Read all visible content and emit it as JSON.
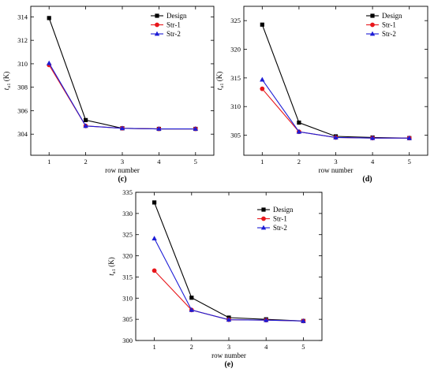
{
  "colors": {
    "Design": "#000000",
    "Str-1": "#e8161b",
    "Str-2": "#1d1dd6",
    "axis": "#000000",
    "background": "#ffffff"
  },
  "markers": {
    "Design": "square",
    "Str-1": "circle",
    "Str-2": "triangle"
  },
  "chart_data": [
    {
      "id": "c",
      "panel_label": "(c)",
      "type": "line",
      "xlabel": "row number",
      "ylabel": "t",
      "ylabel_subscript": "a1",
      "ylabel_unit": "(K)",
      "x": [
        1,
        2,
        3,
        4,
        5
      ],
      "xlim": [
        0.5,
        5.5
      ],
      "ylim": [
        302.2,
        314.9
      ],
      "yticks": [
        304,
        306,
        308,
        310,
        312,
        314
      ],
      "grid": false,
      "legend_position": "top-right",
      "series": [
        {
          "name": "Design",
          "values": [
            313.9,
            305.2,
            304.5,
            304.45,
            304.45
          ]
        },
        {
          "name": "Str-1",
          "values": [
            309.9,
            304.7,
            304.5,
            304.45,
            304.45
          ]
        },
        {
          "name": "Str-2",
          "values": [
            310.05,
            304.7,
            304.5,
            304.45,
            304.45
          ]
        }
      ]
    },
    {
      "id": "d",
      "panel_label": "(d)",
      "type": "line",
      "xlabel": "row number",
      "ylabel": "t",
      "ylabel_subscript": "a1",
      "ylabel_unit": "(K)",
      "x": [
        1,
        2,
        3,
        4,
        5
      ],
      "xlim": [
        0.5,
        5.5
      ],
      "ylim": [
        301.5,
        327.5
      ],
      "yticks": [
        305,
        310,
        315,
        320,
        325
      ],
      "grid": false,
      "legend_position": "top-right",
      "series": [
        {
          "name": "Design",
          "values": [
            324.3,
            307.2,
            304.8,
            304.6,
            304.5
          ]
        },
        {
          "name": "Str-1",
          "values": [
            313.1,
            305.6,
            304.6,
            304.5,
            304.5
          ]
        },
        {
          "name": "Str-2",
          "values": [
            314.7,
            305.6,
            304.6,
            304.5,
            304.5
          ]
        }
      ]
    },
    {
      "id": "e",
      "panel_label": "(e)",
      "type": "line",
      "xlabel": "row number",
      "ylabel": "t",
      "ylabel_subscript": "a1",
      "ylabel_unit": "(K)",
      "x": [
        1,
        2,
        3,
        4,
        5
      ],
      "xlim": [
        0.5,
        5.5
      ],
      "ylim": [
        300,
        335
      ],
      "yticks": [
        300,
        305,
        310,
        315,
        320,
        325,
        330,
        335
      ],
      "grid": false,
      "legend_position": "top-right",
      "series": [
        {
          "name": "Design",
          "values": [
            332.6,
            310.1,
            305.4,
            305.0,
            304.6
          ]
        },
        {
          "name": "Str-1",
          "values": [
            316.5,
            307.2,
            304.9,
            304.8,
            304.6
          ]
        },
        {
          "name": "Str-2",
          "values": [
            324.1,
            307.2,
            304.9,
            304.8,
            304.6
          ]
        }
      ]
    }
  ]
}
